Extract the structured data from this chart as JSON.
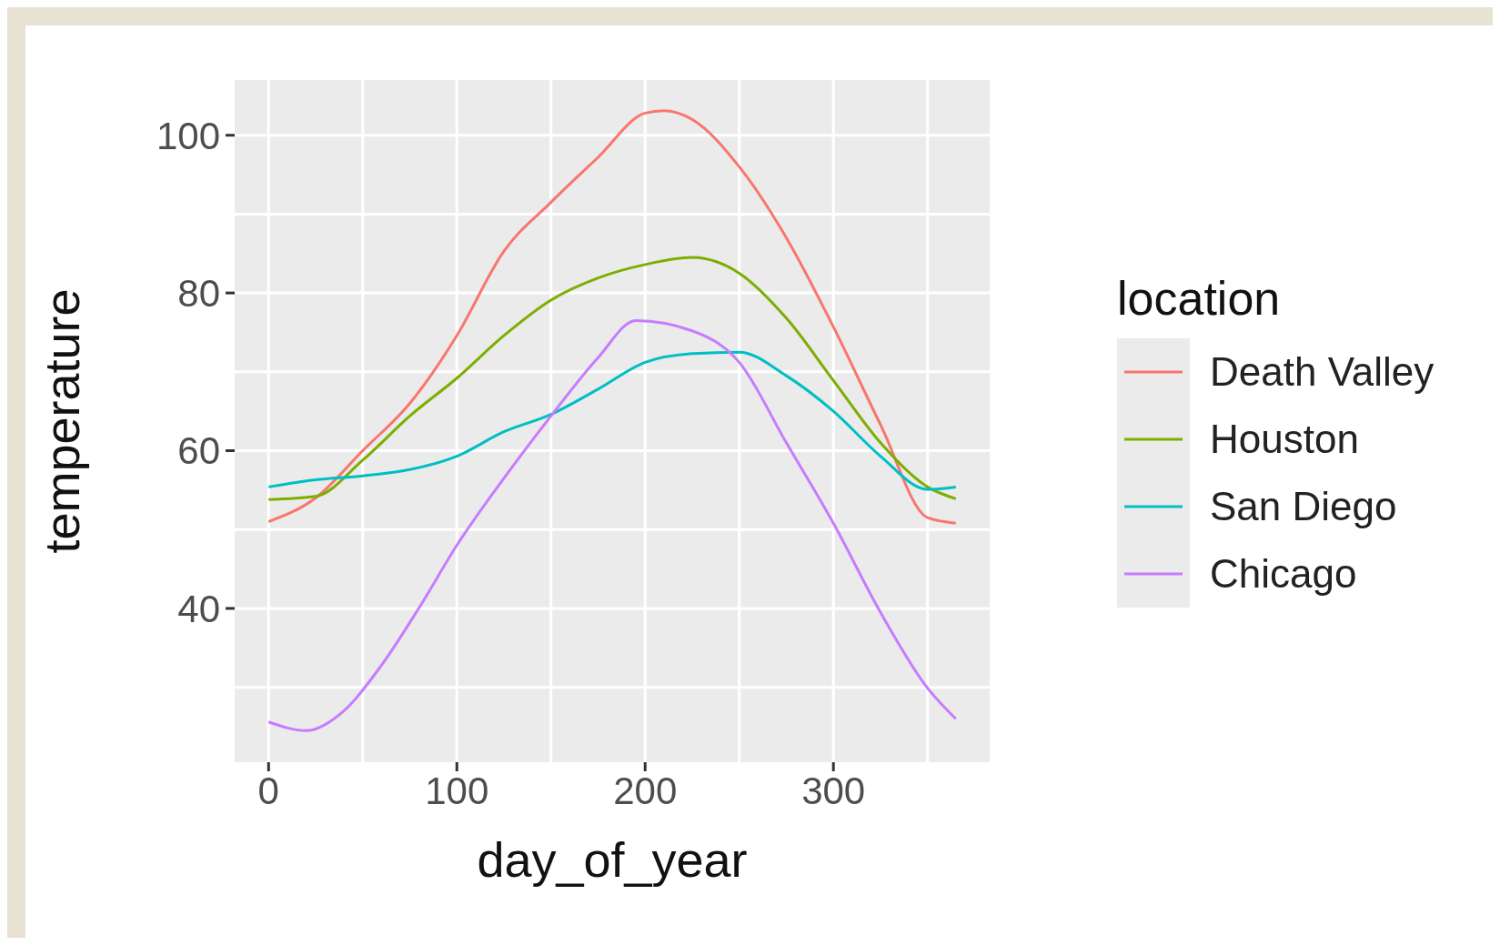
{
  "chart_data": {
    "type": "line",
    "xlabel": "day_of_year",
    "ylabel": "temperature",
    "legend_title": "location",
    "legend": "right",
    "grid": true,
    "xlim": [
      -18,
      383
    ],
    "ylim": [
      20.5,
      107
    ],
    "xticks": [
      0,
      100,
      200,
      300
    ],
    "yticks": [
      40,
      60,
      80,
      100
    ],
    "series": [
      {
        "name": "Death Valley",
        "color": "#f8766d",
        "x": [
          0,
          25,
          50,
          75,
          100,
          125,
          150,
          175,
          200,
          210,
          225,
          250,
          275,
          300,
          325,
          350,
          365
        ],
        "values": [
          51,
          54,
          60,
          66,
          74.6,
          85.3,
          91.5,
          97.2,
          102.8,
          103.1,
          102,
          96,
          87,
          75.7,
          63.3,
          51.5,
          50.8
        ]
      },
      {
        "name": "Houston",
        "color": "#7cae00",
        "x": [
          0,
          25,
          50,
          75,
          100,
          125,
          150,
          175,
          200,
          225,
          250,
          275,
          300,
          325,
          350,
          365
        ],
        "values": [
          53.8,
          54.2,
          58.8,
          64.4,
          69.2,
          74.6,
          79.1,
          81.9,
          83.6,
          84.5,
          82.5,
          76.8,
          68.9,
          61,
          55.4,
          53.9
        ]
      },
      {
        "name": "San Diego",
        "color": "#00bfc4",
        "x": [
          0,
          25,
          50,
          75,
          100,
          125,
          150,
          175,
          200,
          225,
          250,
          275,
          300,
          325,
          350,
          365
        ],
        "values": [
          55.4,
          56.3,
          56.8,
          57.6,
          59.3,
          62.4,
          64.6,
          67.8,
          71.2,
          72.3,
          72.5,
          69.5,
          65,
          59.3,
          55.1,
          55.4
        ]
      },
      {
        "name": "Chicago",
        "color": "#c77cff",
        "x": [
          0,
          20,
          40,
          60,
          80,
          100,
          125,
          150,
          175,
          195,
          225,
          250,
          275,
          300,
          325,
          350,
          365
        ],
        "values": [
          25.6,
          24.5,
          27,
          32.8,
          40.1,
          48,
          56.5,
          64.4,
          71.8,
          76.5,
          75.2,
          71.2,
          61,
          50.8,
          39.5,
          29.9,
          26
        ]
      }
    ]
  }
}
